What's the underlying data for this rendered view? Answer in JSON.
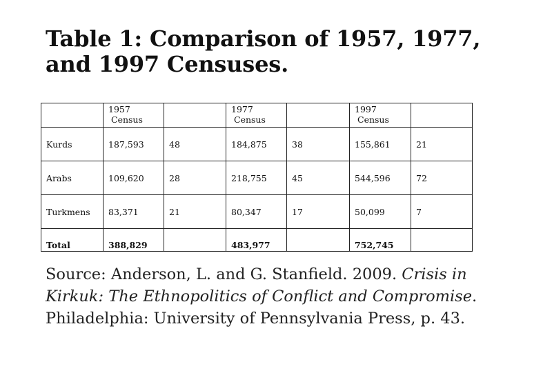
{
  "title": "Table 1: Comparison of 1957, 1977, and 1997 Censuses.",
  "table": {
    "header": [
      {
        "line1": "1957",
        "line2": "Census"
      },
      {
        "line1": "",
        "line2": ""
      },
      {
        "line1": "1977",
        "line2": "Census"
      },
      {
        "line1": "",
        "line2": ""
      },
      {
        "line1": "1997",
        "line2": "Census"
      },
      {
        "line1": "",
        "line2": ""
      }
    ],
    "rows": [
      {
        "label": "Kurds",
        "cells": [
          "187,593",
          "48",
          "184,875",
          "38",
          "155,861",
          "21"
        ]
      },
      {
        "label": "Arabs",
        "cells": [
          "109,620",
          "28",
          "218,755",
          "45",
          "544,596",
          "72"
        ]
      },
      {
        "label": "Turkmens",
        "cells": [
          "83,371",
          "21",
          "80,347",
          "17",
          "50,099",
          "7"
        ]
      }
    ],
    "total": {
      "label": "Total",
      "cells": [
        "388,829",
        "",
        "483,977",
        "",
        "752,745",
        ""
      ]
    }
  },
  "source": {
    "prefix": "Source: Anderson, L. and G. Stanfield. 2009.",
    "book_title": "Crisis in Kirkuk: The Ethnopolitics of Conflict and Compromise",
    "suffix": ". Philadelphia: University of Pennsylvania Press, p. 43."
  }
}
